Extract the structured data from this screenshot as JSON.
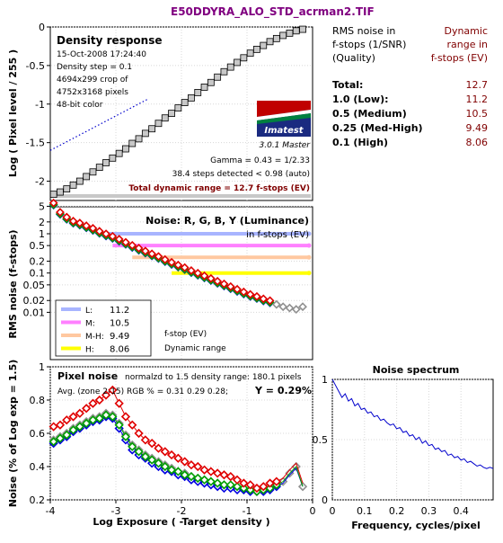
{
  "title": "E50DDYRA_ALO_STD_acrman2.TIF",
  "colors": {
    "title": "#800080",
    "dark_red": "#800000",
    "box_gray": "#c8c8c8"
  },
  "chart_data": [
    {
      "type": "line",
      "id": "density",
      "title": "Density response",
      "xlabel": "",
      "ylabel": "Log ( Pixel level / 255 )",
      "xlim": [
        -4,
        0
      ],
      "ylim": [
        -2.25,
        0
      ],
      "yticks": [
        "0",
        "-0.5",
        "-1",
        "-1.5",
        "-2"
      ],
      "info": [
        "15-Oct-2008 17:24:40",
        "Density step = 0.1",
        "4694x299 crop of",
        "4752x3168 pixels",
        "48-bit color"
      ],
      "logo": "Imatest",
      "version": "3.0.1  Master",
      "gamma": "Gamma = 0.43 = 1/2.33",
      "steps": "38.4 steps detected < 0.98 (auto)",
      "total": "Total dynamic range = 12.7 f-stops (EV)",
      "series": [
        {
          "x": [
            -3.95,
            -3.85,
            -3.75,
            -3.65,
            -3.55,
            -3.45,
            -3.35,
            -3.25,
            -3.15,
            -3.05,
            -2.95,
            -2.85,
            -2.75,
            -2.65,
            -2.55,
            -2.45,
            -2.35,
            -2.25,
            -2.15,
            -2.05,
            -1.95,
            -1.85,
            -1.75,
            -1.65,
            -1.55,
            -1.45,
            -1.35,
            -1.25,
            -1.15,
            -1.05,
            -0.95,
            -0.85,
            -0.75,
            -0.65,
            -0.55,
            -0.45,
            -0.35,
            -0.25,
            -0.15
          ],
          "y": [
            -2.17,
            -2.14,
            -2.1,
            -2.05,
            -2,
            -1.94,
            -1.88,
            -1.82,
            -1.76,
            -1.7,
            -1.64,
            -1.58,
            -1.51,
            -1.45,
            -1.38,
            -1.32,
            -1.25,
            -1.18,
            -1.12,
            -1.05,
            -0.98,
            -0.92,
            -0.85,
            -0.78,
            -0.72,
            -0.65,
            -0.58,
            -0.52,
            -0.46,
            -0.4,
            -0.34,
            -0.29,
            -0.24,
            -0.19,
            -0.15,
            -0.11,
            -0.08,
            -0.05,
            -0.03
          ]
        }
      ],
      "fit_line": {
        "x": [
          -4,
          -2.5
        ],
        "y": [
          -1.6,
          -0.93
        ]
      }
    },
    {
      "type": "line",
      "id": "noise_stops",
      "title": "Noise: R, G, B, Y (Luminance)",
      "subtitle": "in f-stops (EV)",
      "ylabel": "RMS noise (f-stops)",
      "xlim": [
        -4,
        0
      ],
      "yscale": "log",
      "yticks": [
        "5",
        "2",
        "1",
        "0.5",
        "0.2",
        "0.1",
        "0.05",
        "0.02",
        "0.01"
      ],
      "thresholds": [
        {
          "label": "L:",
          "value": "11.2",
          "level": 1.0,
          "color": "#a8b4ff"
        },
        {
          "label": "M:",
          "value": "10.5",
          "level": 0.5,
          "color": "#ff80ff"
        },
        {
          "label": "M-H:",
          "value": "9.49",
          "level": 0.25,
          "color": "#ffc8a0"
        },
        {
          "label": "H:",
          "value": "8.06",
          "level": 0.1,
          "color": "#ffff00"
        }
      ],
      "legend_note": [
        "f-stop (EV)",
        "Dynamic range"
      ],
      "x": [
        -3.95,
        -3.85,
        -3.75,
        -3.65,
        -3.55,
        -3.45,
        -3.35,
        -3.25,
        -3.15,
        -3.05,
        -2.95,
        -2.85,
        -2.75,
        -2.65,
        -2.55,
        -2.45,
        -2.35,
        -2.25,
        -2.15,
        -2.05,
        -1.95,
        -1.85,
        -1.75,
        -1.65,
        -1.55,
        -1.45,
        -1.35,
        -1.25,
        -1.15,
        -1.05,
        -0.95,
        -0.85,
        -0.75,
        -0.65,
        -0.55,
        -0.45,
        -0.35,
        -0.25,
        -0.15
      ],
      "y": [
        5.5,
        3.2,
        2.4,
        1.9,
        1.7,
        1.45,
        1.25,
        1.05,
        0.9,
        0.78,
        0.66,
        0.55,
        0.46,
        0.39,
        0.33,
        0.28,
        0.24,
        0.2,
        0.17,
        0.145,
        0.125,
        0.105,
        0.09,
        0.077,
        0.066,
        0.056,
        0.048,
        0.041,
        0.035,
        0.03,
        0.026,
        0.023,
        0.02,
        0.018,
        0.016,
        0.014,
        0.013,
        0.012,
        0.014
      ]
    },
    {
      "type": "line",
      "id": "pixel_noise",
      "title": "Pixel noise",
      "title_note": "normalzd to 1.5 density range: 180.1 pixels",
      "avg_line": "Avg. (zone 2-15) RGB % = 0.31  0.29  0.28;",
      "y_result": "Y = 0.29%",
      "xlabel": "Log Exposure ( -Target density )",
      "ylabel": "Noise (% of Log exp = 1.5)",
      "xlim": [
        -4,
        0
      ],
      "ylim": [
        0.2,
        1.0
      ],
      "xticks": [
        "-4",
        "-3",
        "-2",
        "-1",
        "0"
      ],
      "yticks": [
        "1",
        "0.8",
        "0.6",
        "0.4",
        "0.2"
      ],
      "x": [
        -3.95,
        -3.85,
        -3.75,
        -3.65,
        -3.55,
        -3.45,
        -3.35,
        -3.25,
        -3.15,
        -3.05,
        -2.95,
        -2.85,
        -2.75,
        -2.65,
        -2.55,
        -2.45,
        -2.35,
        -2.25,
        -2.15,
        -2.05,
        -1.95,
        -1.85,
        -1.75,
        -1.65,
        -1.55,
        -1.45,
        -1.35,
        -1.25,
        -1.15,
        -1.05,
        -0.95,
        -0.85,
        -0.75,
        -0.65,
        -0.55,
        -0.45,
        -0.35,
        -0.25,
        -0.15
      ],
      "series": [
        {
          "name": "R",
          "color": "#e00000",
          "y": [
            0.64,
            0.65,
            0.68,
            0.7,
            0.72,
            0.75,
            0.78,
            0.8,
            0.83,
            0.86,
            0.78,
            0.7,
            0.65,
            0.6,
            0.56,
            0.54,
            0.51,
            0.49,
            0.47,
            0.45,
            0.43,
            0.41,
            0.4,
            0.38,
            0.37,
            0.36,
            0.35,
            0.34,
            0.32,
            0.3,
            0.29,
            0.27,
            0.28,
            0.3,
            0.31,
            0.33,
            0.38,
            0.42,
            0.3
          ]
        },
        {
          "name": "G",
          "color": "#00a000",
          "y": [
            0.55,
            0.57,
            0.59,
            0.62,
            0.64,
            0.66,
            0.68,
            0.69,
            0.71,
            0.7,
            0.65,
            0.58,
            0.52,
            0.49,
            0.46,
            0.44,
            0.42,
            0.4,
            0.38,
            0.37,
            0.35,
            0.34,
            0.33,
            0.32,
            0.31,
            0.3,
            0.29,
            0.29,
            0.28,
            0.27,
            0.26,
            0.25,
            0.26,
            0.27,
            0.29,
            0.31,
            0.36,
            0.4,
            0.28
          ]
        },
        {
          "name": "B",
          "color": "#0000e0",
          "y": [
            0.54,
            0.56,
            0.58,
            0.61,
            0.63,
            0.65,
            0.67,
            0.68,
            0.7,
            0.69,
            0.63,
            0.56,
            0.5,
            0.47,
            0.45,
            0.42,
            0.4,
            0.38,
            0.37,
            0.35,
            0.34,
            0.32,
            0.31,
            0.3,
            0.29,
            0.28,
            0.27,
            0.27,
            0.26,
            0.26,
            0.25,
            0.25,
            0.25,
            0.26,
            0.28,
            0.3,
            0.35,
            0.39,
            0.28
          ]
        },
        {
          "name": "Y",
          "color": "#909090",
          "y": [
            0.56,
            0.58,
            0.6,
            0.63,
            0.65,
            0.67,
            0.69,
            0.7,
            0.72,
            0.71,
            0.66,
            0.59,
            0.53,
            0.5,
            0.47,
            0.45,
            0.43,
            0.41,
            0.39,
            0.37,
            0.36,
            0.34,
            0.33,
            0.32,
            0.31,
            0.3,
            0.29,
            0.28,
            0.27,
            0.26,
            0.26,
            0.25,
            0.26,
            0.27,
            0.29,
            0.31,
            0.36,
            0.4,
            0.28
          ]
        }
      ]
    },
    {
      "type": "line",
      "id": "noise_spectrum",
      "title": "Noise spectrum",
      "xlabel": "Frequency, cycles/pixel",
      "xlim": [
        0,
        0.5
      ],
      "ylim": [
        0,
        1
      ],
      "xticks": [
        "0",
        "0.1",
        "0.2",
        "0.3",
        "0.4"
      ],
      "yticks": [
        "1",
        "0.5",
        "0"
      ],
      "x": [
        0,
        0.01,
        0.02,
        0.03,
        0.04,
        0.05,
        0.06,
        0.07,
        0.08,
        0.09,
        0.1,
        0.11,
        0.12,
        0.13,
        0.14,
        0.15,
        0.16,
        0.17,
        0.18,
        0.19,
        0.2,
        0.21,
        0.22,
        0.23,
        0.24,
        0.25,
        0.26,
        0.27,
        0.28,
        0.29,
        0.3,
        0.31,
        0.32,
        0.33,
        0.34,
        0.35,
        0.36,
        0.37,
        0.38,
        0.39,
        0.4,
        0.41,
        0.42,
        0.43,
        0.44,
        0.45,
        0.46,
        0.47,
        0.48,
        0.49,
        0.5
      ],
      "y": [
        1,
        0.95,
        0.9,
        0.85,
        0.88,
        0.82,
        0.84,
        0.78,
        0.8,
        0.75,
        0.76,
        0.72,
        0.73,
        0.69,
        0.7,
        0.66,
        0.67,
        0.64,
        0.62,
        0.63,
        0.59,
        0.6,
        0.56,
        0.57,
        0.53,
        0.54,
        0.5,
        0.52,
        0.47,
        0.49,
        0.45,
        0.46,
        0.42,
        0.43,
        0.4,
        0.41,
        0.37,
        0.38,
        0.35,
        0.36,
        0.33,
        0.34,
        0.31,
        0.32,
        0.3,
        0.28,
        0.29,
        0.27,
        0.26,
        0.27,
        0.26
      ]
    }
  ],
  "summary": {
    "head_left": [
      "RMS noise in",
      "f-stops (1/SNR)",
      "(Quality)"
    ],
    "head_right": [
      "Dynamic",
      "range in",
      "f-stops (EV)"
    ],
    "rows": [
      {
        "left": "Total:",
        "right": "12.7"
      },
      {
        "left": "1.0   (Low):",
        "right": "11.2"
      },
      {
        "left": "0.5   (Medium)",
        "right": "10.5"
      },
      {
        "left": "0.25 (Med-High)",
        "right": "9.49"
      },
      {
        "left": "0.1   (High)",
        "right": "8.06"
      }
    ]
  }
}
